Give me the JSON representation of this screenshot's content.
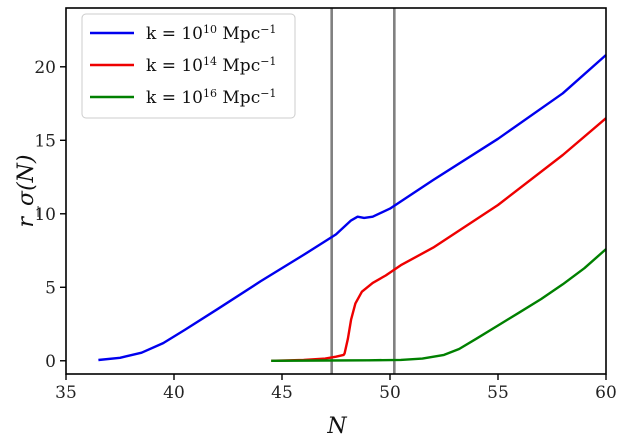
{
  "chart_data": {
    "type": "line",
    "title": "",
    "xlabel": "N",
    "ylabel": "r_σ(N)",
    "xlim": [
      35,
      60
    ],
    "ylim": [
      -0.9,
      24
    ],
    "xticks": [
      35,
      40,
      45,
      50,
      55,
      60
    ],
    "yticks": [
      0,
      5,
      10,
      15,
      20
    ],
    "xtick_labels": [
      "35",
      "40",
      "45",
      "50",
      "55",
      "60"
    ],
    "ytick_labels": [
      "0",
      "5",
      "10",
      "15",
      "20"
    ],
    "grid": false,
    "legend_position": "top-left",
    "vertical_lines": [
      {
        "x": 47.3,
        "color": "#808080"
      },
      {
        "x": 50.2,
        "color": "#808080"
      }
    ],
    "series": [
      {
        "name_parts": [
          "k = 10",
          "10",
          " Mpc",
          "−1"
        ],
        "color": "#0000ee",
        "points": [
          [
            36.5,
            0.05
          ],
          [
            37.5,
            0.2
          ],
          [
            38.5,
            0.55
          ],
          [
            39.5,
            1.2
          ],
          [
            40.5,
            2.1
          ],
          [
            42,
            3.5
          ],
          [
            44,
            5.4
          ],
          [
            46,
            7.2
          ],
          [
            47.5,
            8.6
          ],
          [
            48.2,
            9.55
          ],
          [
            48.5,
            9.8
          ],
          [
            48.8,
            9.72
          ],
          [
            49.2,
            9.8
          ],
          [
            50,
            10.35
          ],
          [
            52,
            12.3
          ],
          [
            55,
            15.1
          ],
          [
            58,
            18.2
          ],
          [
            60,
            20.8
          ]
        ]
      },
      {
        "name_parts": [
          "k = 10",
          "14",
          " Mpc",
          "−1"
        ],
        "color": "#ee0000",
        "points": [
          [
            44.5,
            0.0
          ],
          [
            46,
            0.05
          ],
          [
            47,
            0.15
          ],
          [
            47.5,
            0.28
          ],
          [
            47.85,
            0.4
          ],
          [
            47.9,
            0.5
          ],
          [
            48.05,
            1.5
          ],
          [
            48.2,
            2.8
          ],
          [
            48.4,
            3.9
          ],
          [
            48.7,
            4.7
          ],
          [
            49.2,
            5.3
          ],
          [
            49.8,
            5.8
          ],
          [
            50.5,
            6.5
          ],
          [
            52,
            7.7
          ],
          [
            55,
            10.6
          ],
          [
            58,
            14.0
          ],
          [
            60,
            16.5
          ]
        ]
      },
      {
        "name_parts": [
          "k = 10",
          "16",
          " Mpc",
          "−1"
        ],
        "color": "#008000",
        "points": [
          [
            44.5,
            0.0
          ],
          [
            47,
            0.02
          ],
          [
            49,
            0.03
          ],
          [
            50.5,
            0.06
          ],
          [
            51.5,
            0.15
          ],
          [
            52.5,
            0.4
          ],
          [
            53.2,
            0.8
          ],
          [
            54,
            1.5
          ],
          [
            55,
            2.4
          ],
          [
            56,
            3.3
          ],
          [
            57,
            4.2
          ],
          [
            58,
            5.2
          ],
          [
            59,
            6.3
          ],
          [
            60,
            7.6
          ]
        ]
      }
    ]
  }
}
